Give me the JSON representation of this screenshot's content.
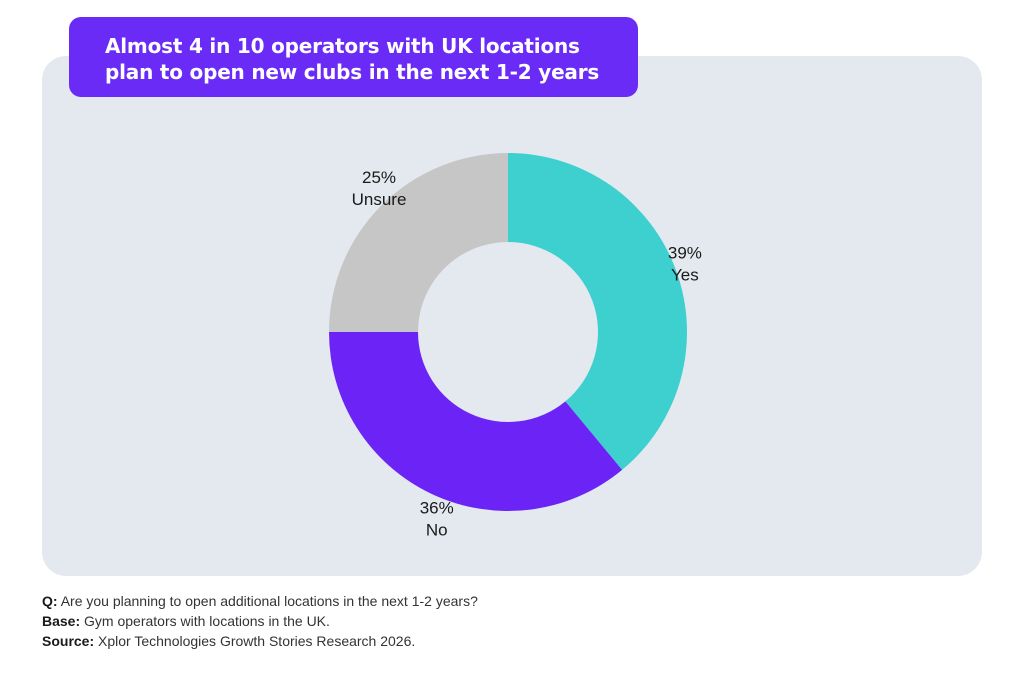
{
  "title": {
    "line1": "Almost 4 in 10 operators with UK locations",
    "line2": "plan to open new clubs in the next 1-2 years"
  },
  "colors": {
    "title_bg": "#6b2bf6",
    "panel_bg": "#e3e9ef"
  },
  "chart_data": {
    "type": "pie",
    "variant": "donut",
    "slices": [
      {
        "label": "Yes",
        "value": 39,
        "value_label": "39%",
        "color": "#3ecfcf"
      },
      {
        "label": "No",
        "value": 36,
        "value_label": "36%",
        "color": "#6b24f5"
      },
      {
        "label": "Unsure",
        "value": 25,
        "value_label": "25%",
        "color": "#c6c6c6"
      }
    ],
    "start_angle": "top, clockwise"
  },
  "footer": {
    "q_label": "Q:",
    "q_text": "Are you planning to open additional locations in the next 1-2 years?",
    "base_label": "Base:",
    "base_text": "Gym operators with locations in the UK.",
    "source_label": "Source:",
    "source_text": "Xplor Technologies Growth Stories Research 2026."
  }
}
